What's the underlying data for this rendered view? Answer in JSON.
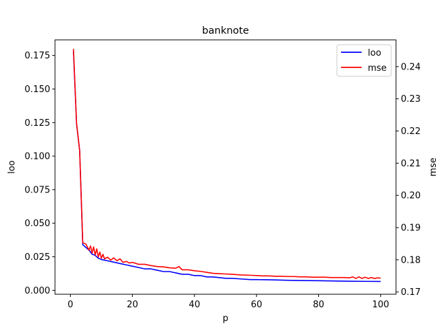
{
  "chart_data": {
    "type": "line",
    "title": "banknote",
    "xlabel": "p",
    "ylabel_left": "loo",
    "ylabel_right": "mse",
    "xlim": [
      -4.95,
      104.95
    ],
    "ylim_left": [
      -0.0029,
      0.1866
    ],
    "ylim_right": [
      0.1693,
      0.2483
    ],
    "x_ticks": [
      0,
      20,
      40,
      60,
      80,
      100
    ],
    "y_ticks_left": [
      0.0,
      0.025,
      0.05,
      0.075,
      0.1,
      0.125,
      0.15,
      0.175
    ],
    "y_tick_labels_left": [
      "0.000",
      "0.025",
      "0.050",
      "0.075",
      "0.100",
      "0.125",
      "0.150",
      "0.175"
    ],
    "y_ticks_right": [
      0.17,
      0.18,
      0.19,
      0.2,
      0.21,
      0.22,
      0.23,
      0.24
    ],
    "y_tick_labels_right": [
      "0.17",
      "0.18",
      "0.19",
      "0.20",
      "0.21",
      "0.22",
      "0.23",
      "0.24"
    ],
    "grid": false,
    "legend": "top-right",
    "series": [
      {
        "name": "loo",
        "axis": "left",
        "color": "#0000ff",
        "x": [
          1,
          2,
          3,
          4,
          5,
          6,
          7,
          8,
          9,
          10,
          12,
          14,
          16,
          18,
          20,
          22,
          24,
          26,
          28,
          30,
          32,
          34,
          36,
          38,
          40,
          42,
          44,
          46,
          48,
          50,
          52,
          55,
          58,
          60,
          65,
          70,
          75,
          80,
          85,
          90,
          95,
          100
        ],
        "values": [
          0.178,
          0.124,
          0.104,
          0.034,
          0.032,
          0.03,
          0.027,
          0.026,
          0.024,
          0.023,
          0.022,
          0.021,
          0.02,
          0.019,
          0.018,
          0.017,
          0.016,
          0.016,
          0.015,
          0.014,
          0.014,
          0.013,
          0.012,
          0.012,
          0.011,
          0.011,
          0.01,
          0.01,
          0.0095,
          0.009,
          0.009,
          0.0085,
          0.008,
          0.008,
          0.0078,
          0.0075,
          0.0073,
          0.0072,
          0.007,
          0.0068,
          0.0067,
          0.0066
        ]
      },
      {
        "name": "mse",
        "axis": "right",
        "color": "#ff0000",
        "x": [
          1,
          2,
          3,
          4,
          5,
          6,
          6.5,
          7,
          7.5,
          8,
          8.5,
          9,
          9.5,
          10,
          10.5,
          11,
          12,
          13,
          14,
          15,
          16,
          17,
          18,
          19,
          20,
          22,
          24,
          26,
          28,
          30,
          32,
          34,
          35,
          36,
          38,
          40,
          42,
          44,
          46,
          48,
          50,
          52,
          55,
          58,
          60,
          62,
          64,
          66,
          68,
          70,
          72,
          74,
          76,
          78,
          80,
          82,
          84,
          86,
          88,
          90,
          91,
          92,
          93,
          94,
          95,
          96,
          97,
          98,
          99,
          100
        ],
        "values": [
          0.2455,
          0.2224,
          0.2139,
          0.1853,
          0.1849,
          0.183,
          0.1843,
          0.1821,
          0.184,
          0.1815,
          0.1834,
          0.1809,
          0.1824,
          0.1805,
          0.1817,
          0.1803,
          0.1808,
          0.1799,
          0.1806,
          0.1797,
          0.1803,
          0.1792,
          0.1795,
          0.179,
          0.1792,
          0.1786,
          0.1786,
          0.1782,
          0.1779,
          0.1778,
          0.1775,
          0.1774,
          0.1779,
          0.1769,
          0.1769,
          0.1766,
          0.1764,
          0.1761,
          0.1758,
          0.1757,
          0.1756,
          0.1755,
          0.1753,
          0.1752,
          0.1751,
          0.175,
          0.175,
          0.1749,
          0.1749,
          0.1748,
          0.1748,
          0.1747,
          0.1747,
          0.1746,
          0.1746,
          0.1746,
          0.1745,
          0.1745,
          0.1745,
          0.1744,
          0.1747,
          0.1742,
          0.1747,
          0.1742,
          0.1746,
          0.1742,
          0.1745,
          0.1742,
          0.1744,
          0.1743
        ]
      }
    ]
  }
}
